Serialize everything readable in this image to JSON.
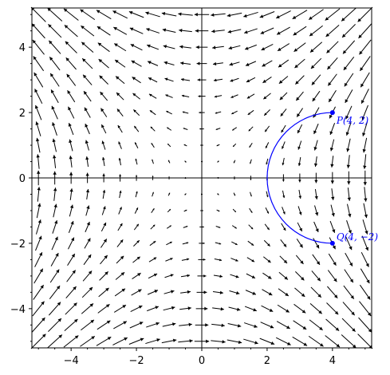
{
  "chart_data": {
    "type": "vector_field",
    "title": "",
    "xlabel": "",
    "ylabel": "",
    "xlim": [
      -5.2,
      5.2
    ],
    "ylim": [
      -5.2,
      5.2
    ],
    "x_ticks": [
      -4,
      -2,
      0,
      2,
      4
    ],
    "y_ticks": [
      -4,
      -2,
      0,
      2,
      4
    ],
    "x_tick_labels": [
      "−4",
      "−2",
      "0",
      "2",
      "4"
    ],
    "y_tick_labels": [
      "−4",
      "−2",
      "0",
      "2",
      "4"
    ],
    "grid": false,
    "field": {
      "P": "-y",
      "Q": "-x",
      "grid_min": -5,
      "grid_max": 5,
      "grid_step": 0.5
    },
    "curve": {
      "type": "semicircle",
      "center": [
        4,
        0
      ],
      "radius": 2,
      "from": [
        4,
        2
      ],
      "to": [
        4,
        -2
      ],
      "through": [
        2,
        0
      ]
    },
    "points": [
      {
        "label": "P(4, 2)",
        "x": 4,
        "y": 2
      },
      {
        "label": "Q(4, −2)",
        "x": 4,
        "y": -2
      }
    ],
    "colors": {
      "field": "#000000",
      "curve": "#0000ff",
      "axes": "#000000"
    }
  }
}
